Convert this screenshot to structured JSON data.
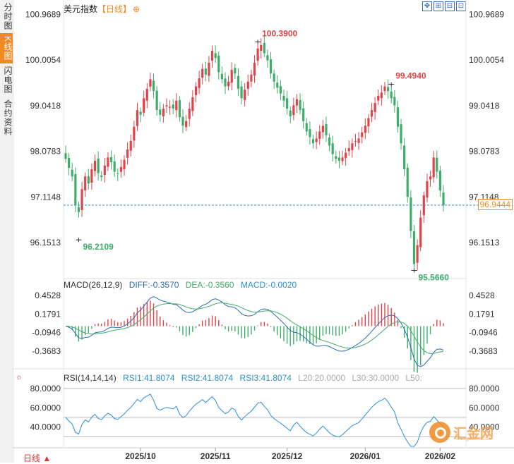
{
  "sidebar": {
    "tabs": [
      {
        "label": "分时图",
        "active": false
      },
      {
        "label": "K线图",
        "active": true
      },
      {
        "label": "闪电图",
        "active": false
      },
      {
        "label": "合约资料",
        "active": false
      }
    ]
  },
  "header": {
    "title": "美元指数",
    "period": "【日线】",
    "add_icon": "⊕"
  },
  "toolbar": {
    "icons": [
      "expand-icon",
      "zoom-in-icon",
      "zoom-out-icon",
      "fullscreen-icon"
    ]
  },
  "last_price": "96.9444",
  "bottom": {
    "period_button": "日线 ▲"
  },
  "watermark": {
    "text": "汇金网",
    "url": "www.gold678.com"
  },
  "chart_data": [
    {
      "type": "candlestick",
      "title": "美元指数",
      "y_ticks": [
        "100.9689",
        "100.0054",
        "99.0418",
        "98.0783",
        "97.1148",
        "96.1513"
      ],
      "x_ticks": [
        "2025/10",
        "2025/11",
        "2025/12",
        "2026/01",
        "2026/02"
      ],
      "ylim": [
        95.44,
        101.05
      ],
      "annotations": [
        {
          "label": "100.3900",
          "value": 100.39,
          "kind": "high"
        },
        {
          "label": "99.4940",
          "value": 99.494,
          "kind": "high"
        },
        {
          "label": "96.2109",
          "value": 96.2109,
          "kind": "low"
        },
        {
          "label": "95.5660",
          "value": 95.566,
          "kind": "low"
        }
      ],
      "reference_line": 96.9444,
      "close": [
        97.92,
        97.73,
        97.55,
        96.95,
        96.8,
        97.28,
        97.55,
        97.4,
        97.7,
        97.88,
        97.62,
        97.54,
        97.78,
        97.95,
        97.85,
        97.65,
        97.6,
        97.75,
        97.9,
        98.12,
        98.3,
        98.6,
        98.95,
        98.85,
        99.2,
        99.4,
        99.6,
        99.35,
        98.95,
        98.85,
        98.98,
        99.05,
        99.02,
        98.98,
        99.15,
        98.8,
        98.62,
        98.72,
        98.98,
        99.22,
        99.45,
        99.62,
        99.82,
        99.7,
        99.95,
        100.2,
        100.05,
        99.75,
        99.6,
        99.45,
        99.55,
        99.8,
        99.72,
        99.4,
        99.2,
        99.38,
        99.55,
        99.7,
        99.95,
        100.25,
        100.32,
        100.15,
        100.0,
        99.72,
        99.55,
        99.42,
        99.3,
        99.15,
        98.98,
        98.82,
        99.05,
        99.18,
        98.95,
        98.72,
        98.5,
        98.38,
        98.25,
        98.35,
        98.5,
        98.62,
        98.42,
        98.2,
        98.02,
        97.92,
        97.88,
        97.95,
        98.05,
        98.15,
        98.25,
        98.3,
        98.35,
        98.48,
        98.62,
        98.78,
        98.95,
        99.1,
        99.25,
        99.32,
        99.45,
        99.35,
        99.2,
        99.05,
        98.6,
        98.25,
        97.7,
        97.12,
        96.4,
        95.7,
        96.1,
        96.68,
        97.15,
        97.45,
        97.55,
        97.95,
        97.65,
        97.25,
        96.94
      ],
      "macd": {
        "label": "MACD(26,12,9)",
        "diff_label": "DIFF:-0.3570",
        "dea_label": "DEA:-0.3560",
        "macd_label": "MACD:-0.0020",
        "y_ticks": [
          "0.4528",
          "0.1791",
          "-0.0946",
          "-0.3683"
        ],
        "ylim": [
          -0.6,
          0.6
        ]
      },
      "rsi": {
        "label": "RSI(14,14,14)",
        "rsi1_label": "RSI1:41.8074",
        "rsi2_label": "RSI2:41.8074",
        "rsi3_label": "RSI3:41.8074",
        "l20_label": "L20:20.0000",
        "l30_label": "L30:30.0000",
        "l50_label": "L50:",
        "y_ticks": [
          "80.0000",
          "60.0000",
          "40.0000"
        ],
        "ylim": [
          20,
          88
        ]
      },
      "colors": {
        "up": "#e0444a",
        "down": "#3fae6a",
        "diff": "#2a6db0",
        "dea": "#3fae6a",
        "rsi": "#2a8fd6",
        "accent": "#f08a24"
      }
    }
  ]
}
